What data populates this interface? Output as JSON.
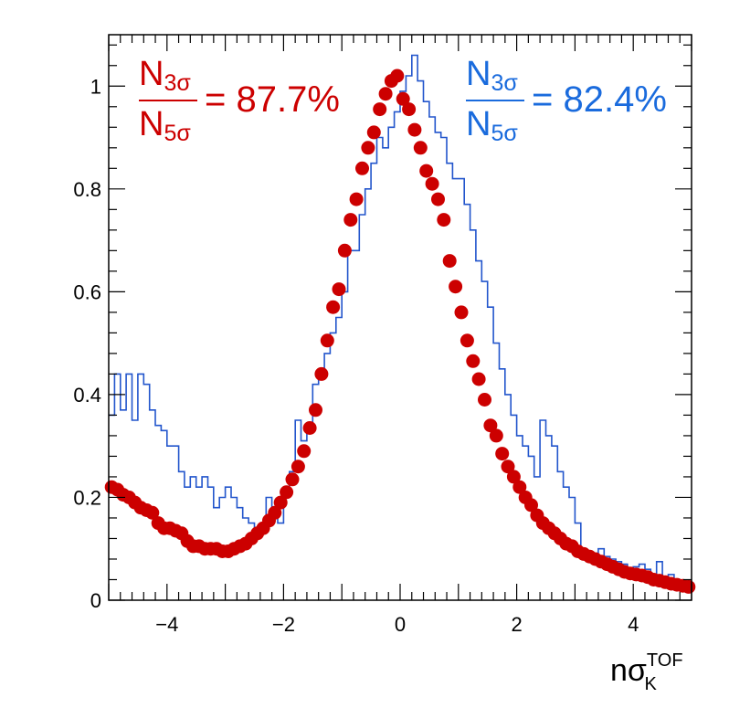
{
  "chart_data": {
    "type": "scatter",
    "xlim": [
      -5,
      5
    ],
    "ylim": [
      0,
      1.1
    ],
    "xticks": [
      -4,
      -2,
      0,
      2,
      4
    ],
    "yticks": [
      0,
      0.2,
      0.4,
      0.6,
      0.8,
      1
    ],
    "xtick_labels": [
      "−4",
      "−2",
      "0",
      "2",
      "4"
    ],
    "ytick_labels": [
      "0",
      "0.2",
      "0.4",
      "0.6",
      "0.8",
      "1"
    ],
    "xlabel": {
      "main": "nσ",
      "sup": "TOF",
      "sub": "K"
    },
    "ylabel": "",
    "grid": false,
    "series": [
      {
        "kind": "markers",
        "color": "#cc0000",
        "x": [
          -4.95,
          -4.85,
          -4.75,
          -4.65,
          -4.55,
          -4.45,
          -4.35,
          -4.25,
          -4.15,
          -4.05,
          -3.95,
          -3.85,
          -3.75,
          -3.65,
          -3.55,
          -3.45,
          -3.35,
          -3.25,
          -3.15,
          -3.05,
          -2.95,
          -2.85,
          -2.75,
          -2.65,
          -2.55,
          -2.45,
          -2.35,
          -2.25,
          -2.15,
          -2.05,
          -1.95,
          -1.85,
          -1.75,
          -1.65,
          -1.55,
          -1.45,
          -1.35,
          -1.25,
          -1.15,
          -1.05,
          -0.95,
          -0.85,
          -0.75,
          -0.65,
          -0.55,
          -0.45,
          -0.35,
          -0.25,
          -0.15,
          -0.05,
          0.05,
          0.15,
          0.25,
          0.35,
          0.45,
          0.55,
          0.65,
          0.75,
          0.85,
          0.95,
          1.05,
          1.15,
          1.25,
          1.35,
          1.45,
          1.55,
          1.65,
          1.75,
          1.85,
          1.95,
          2.05,
          2.15,
          2.25,
          2.35,
          2.45,
          2.55,
          2.65,
          2.75,
          2.85,
          2.95,
          3.05,
          3.15,
          3.25,
          3.35,
          3.45,
          3.55,
          3.65,
          3.75,
          3.85,
          3.95,
          4.05,
          4.15,
          4.25,
          4.35,
          4.45,
          4.55,
          4.65,
          4.75,
          4.85,
          4.95
        ],
        "y": [
          0.22,
          0.215,
          0.205,
          0.2,
          0.19,
          0.18,
          0.175,
          0.17,
          0.15,
          0.14,
          0.14,
          0.135,
          0.13,
          0.115,
          0.105,
          0.105,
          0.1,
          0.1,
          0.1,
          0.095,
          0.095,
          0.1,
          0.105,
          0.11,
          0.12,
          0.13,
          0.14,
          0.155,
          0.17,
          0.19,
          0.21,
          0.235,
          0.26,
          0.29,
          0.335,
          0.37,
          0.44,
          0.505,
          0.57,
          0.605,
          0.68,
          0.74,
          0.78,
          0.84,
          0.88,
          0.91,
          0.955,
          0.985,
          1.01,
          1.02,
          0.975,
          0.955,
          0.915,
          0.88,
          0.835,
          0.81,
          0.78,
          0.74,
          0.66,
          0.61,
          0.56,
          0.505,
          0.465,
          0.43,
          0.39,
          0.34,
          0.32,
          0.285,
          0.26,
          0.24,
          0.22,
          0.2,
          0.185,
          0.165,
          0.15,
          0.14,
          0.13,
          0.12,
          0.11,
          0.105,
          0.095,
          0.09,
          0.085,
          0.08,
          0.075,
          0.07,
          0.065,
          0.06,
          0.055,
          0.052,
          0.05,
          0.048,
          0.045,
          0.04,
          0.038,
          0.035,
          0.032,
          0.03,
          0.028,
          0.026
        ]
      },
      {
        "kind": "step",
        "color": "#2255cc",
        "x": [
          -5.0,
          -4.9,
          -4.8,
          -4.7,
          -4.6,
          -4.5,
          -4.4,
          -4.3,
          -4.2,
          -4.1,
          -4.0,
          -3.9,
          -3.8,
          -3.7,
          -3.6,
          -3.5,
          -3.4,
          -3.3,
          -3.2,
          -3.1,
          -3.0,
          -2.9,
          -2.8,
          -2.7,
          -2.6,
          -2.5,
          -2.4,
          -2.3,
          -2.2,
          -2.1,
          -2.0,
          -1.9,
          -1.8,
          -1.7,
          -1.6,
          -1.5,
          -1.4,
          -1.3,
          -1.2,
          -1.1,
          -1.0,
          -0.9,
          -0.8,
          -0.7,
          -0.6,
          -0.5,
          -0.4,
          -0.3,
          -0.2,
          -0.1,
          0.0,
          0.1,
          0.2,
          0.3,
          0.4,
          0.5,
          0.6,
          0.7,
          0.8,
          0.9,
          1.0,
          1.1,
          1.2,
          1.3,
          1.4,
          1.5,
          1.6,
          1.7,
          1.8,
          1.9,
          2.0,
          2.1,
          2.2,
          2.3,
          2.4,
          2.5,
          2.6,
          2.7,
          2.8,
          2.9,
          3.0,
          3.1,
          3.2,
          3.3,
          3.4,
          3.5,
          3.6,
          3.7,
          3.8,
          3.9,
          4.0,
          4.1,
          4.2,
          4.3,
          4.4,
          4.5,
          4.6,
          4.7,
          4.8,
          4.9,
          5.0
        ],
        "y": [
          0.36,
          0.44,
          0.37,
          0.44,
          0.35,
          0.44,
          0.42,
          0.37,
          0.34,
          0.33,
          0.3,
          0.3,
          0.25,
          0.22,
          0.24,
          0.22,
          0.24,
          0.22,
          0.18,
          0.2,
          0.22,
          0.2,
          0.18,
          0.16,
          0.15,
          0.14,
          0.15,
          0.2,
          0.18,
          0.15,
          0.22,
          0.25,
          0.35,
          0.31,
          0.34,
          0.42,
          0.45,
          0.48,
          0.52,
          0.55,
          0.6,
          0.68,
          0.68,
          0.75,
          0.8,
          0.85,
          0.9,
          0.88,
          0.92,
          0.95,
          0.99,
          1.02,
          1.06,
          1.01,
          0.97,
          0.94,
          0.91,
          0.9,
          0.85,
          0.82,
          0.82,
          0.77,
          0.72,
          0.66,
          0.62,
          0.57,
          0.5,
          0.45,
          0.4,
          0.36,
          0.32,
          0.3,
          0.28,
          0.24,
          0.35,
          0.32,
          0.3,
          0.25,
          0.22,
          0.2,
          0.15,
          0.1,
          0.09,
          0.08,
          0.1,
          0.085,
          0.08,
          0.075,
          0.07,
          0.06,
          0.065,
          0.07,
          0.06,
          0.05,
          0.075,
          0.045,
          0.05,
          0.04,
          0.035,
          0.03,
          0.03
        ]
      }
    ],
    "annotations": [
      {
        "numerator": "N",
        "numerator_sub": "3σ",
        "denominator": "N",
        "denominator_sub": "5σ",
        "value": "= 87.7%",
        "color": "#cc0000"
      },
      {
        "numerator": "N",
        "numerator_sub": "3σ",
        "denominator": "N",
        "denominator_sub": "5σ",
        "value": "= 82.4%",
        "color": "#1a6bdd"
      }
    ]
  }
}
